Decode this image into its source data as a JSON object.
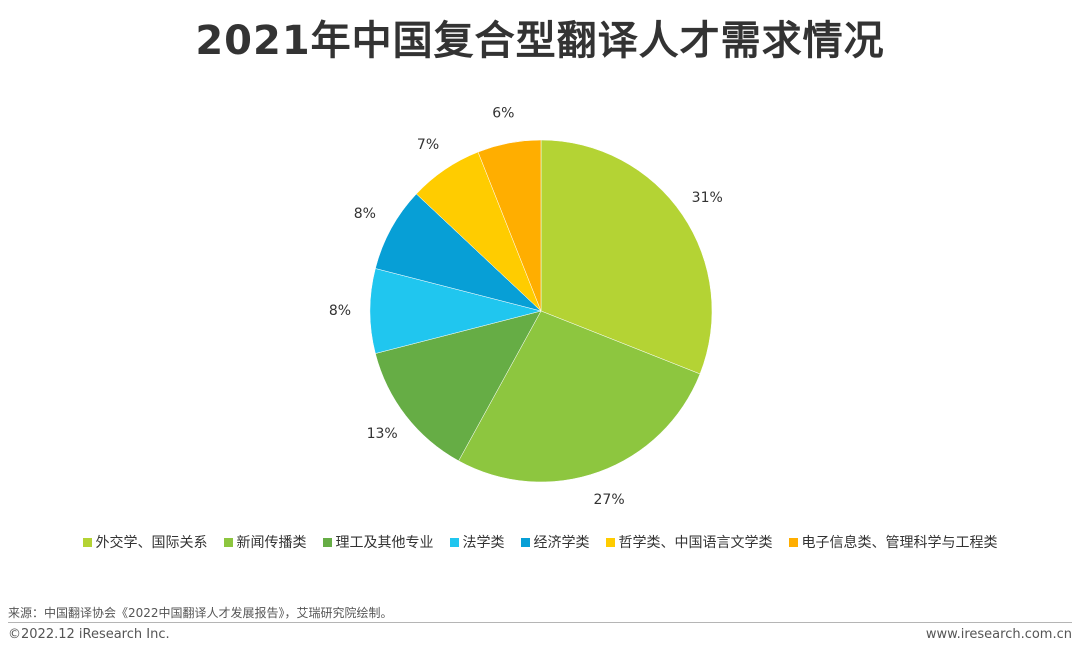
{
  "chart_data": {
    "type": "pie",
    "title": "2021年中国复合型翻译人才需求情况",
    "categories": [
      "外交学、国际关系",
      "新闻传播类",
      "理工及其他专业",
      "法学类",
      "经济学类",
      "哲学类、中国语言文学类",
      "电子信息类、管理科学与工程类"
    ],
    "values": [
      31,
      27,
      13,
      8,
      8,
      7,
      6
    ],
    "labels": [
      "31%",
      "27%",
      "13%",
      "8%",
      "8%",
      "7%",
      "6%"
    ],
    "colors": [
      "#b4d334",
      "#8dc63f",
      "#66ad45",
      "#20c6ef",
      "#079fd6",
      "#ffcc00",
      "#ffae00"
    ],
    "legend_position": "bottom"
  },
  "footer": {
    "source": "来源：中国翻译协会《2022中国翻译人才发展报告》，艾瑞研究院绘制。",
    "copyright": "©2022.12 iResearch Inc.",
    "website": "www.iresearch.com.cn"
  }
}
